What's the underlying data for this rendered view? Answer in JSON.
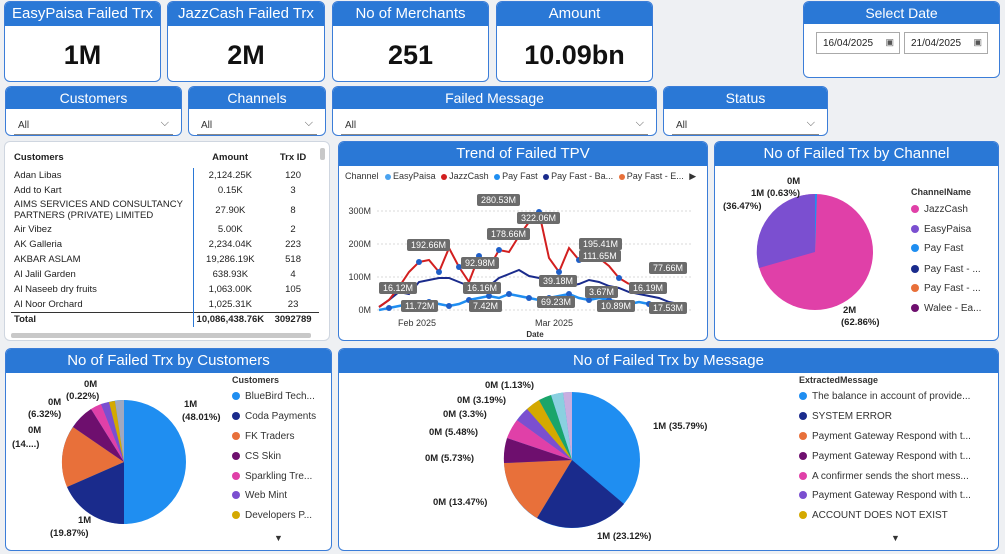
{
  "kpis": [
    {
      "title": "EasyPaisa Failed Trx",
      "value": "1M"
    },
    {
      "title": "JazzCash Failed Trx",
      "value": "2M"
    },
    {
      "title": "No of Merchants",
      "value": "251"
    },
    {
      "title": "Amount",
      "value": "10.09bn"
    }
  ],
  "date": {
    "title": "Select Date",
    "from": "16/04/2025",
    "to": "21/04/2025"
  },
  "slicers": [
    {
      "title": "Customers",
      "value": "All"
    },
    {
      "title": "Channels",
      "value": "All"
    },
    {
      "title": "Failed Message",
      "value": "All"
    },
    {
      "title": "Status",
      "value": "All"
    }
  ],
  "table": {
    "headers": [
      "Customers",
      "Amount",
      "Trx ID"
    ],
    "rows": [
      [
        "Adan Libas",
        "2,124.25K",
        "120"
      ],
      [
        "Add to Kart",
        "0.15K",
        "3"
      ],
      [
        "AIMS SERVICES AND CONSULTANCY PARTNERS (PRIVATE) LIMITED",
        "27.90K",
        "8"
      ],
      [
        "Air Vibez",
        "5.00K",
        "2"
      ],
      [
        "AK Galleria",
        "2,234.04K",
        "223"
      ],
      [
        "AKBAR ASLAM",
        "19,286.19K",
        "518"
      ],
      [
        "Al Jalil Garden",
        "638.93K",
        "4"
      ],
      [
        "Al Naseeb dry fruits",
        "1,063.00K",
        "105"
      ],
      [
        "Al Noor Orchard",
        "1,025.31K",
        "23"
      ]
    ],
    "total": [
      "Total",
      "10,086,438.76K",
      "3092789"
    ]
  },
  "trend": {
    "title": "Trend of Failed TPV",
    "legend_title": "Channel",
    "legend": [
      "EasyPaisa",
      "JazzCash",
      "Pay Fast",
      "Pay Fast - Ba...",
      "Pay Fast - E...",
      "▶"
    ],
    "y_ticks": [
      "300M",
      "200M",
      "100M",
      "0M"
    ],
    "x_ticks": [
      "Feb 2025",
      "Mar 2025"
    ],
    "x_label": "Date",
    "chips": [
      "280.53M",
      "322.06M",
      "192.66M",
      "178.66M",
      "92.98M",
      "195.41M",
      "111.65M",
      "77.66M",
      "16.12M",
      "16.16M",
      "39.18M",
      "3.67M",
      "16.19M",
      "11.72M",
      "7.42M",
      "69.23M",
      "10.89M",
      "17.53M"
    ]
  },
  "channel_pie": {
    "title": "No of Failed Trx by Channel",
    "legend_title": "ChannelName",
    "legend": [
      "JazzCash",
      "EasyPaisa",
      "Pay Fast",
      "Pay Fast - ...",
      "Pay Fast - ...",
      "Walee - Ea..."
    ],
    "labels": {
      "zero": "0M",
      "ep": "1M (0.63%)",
      "ep2": "(36.47%)",
      "jc": "2M",
      "jc2": "(62.86%)"
    }
  },
  "customers_pie": {
    "title": "No of Failed Trx by Customers",
    "legend_title": "Customers",
    "legend": [
      "BlueBird Tech...",
      "Coda Payments",
      "FK Traders",
      "CS Skin",
      "Sparkling Tre...",
      "Web Mint",
      "Developers P..."
    ],
    "labels": {
      "a": "1M",
      "a2": "(48.01%)",
      "b": "1M",
      "b2": "(19.87%)",
      "c": "0M",
      "c2": "(14....)",
      "d": "0M",
      "d2": "(6.32%)",
      "e": "0M",
      "e2": "(0.22%)"
    }
  },
  "message_pie": {
    "title": "No of Failed Trx by Message",
    "legend_title": "ExtractedMessage",
    "legend": [
      "The balance in account of provide...",
      "SYSTEM ERROR",
      "Payment Gateway Respond with t...",
      "Payment Gateway Respond with t...",
      "A confirmer sends the short mess...",
      "Payment Gateway Respond with t...",
      "ACCOUNT DOES NOT EXIST"
    ],
    "labels": [
      "1M (35.79%)",
      "1M (23.12%)",
      "0M (13.47%)",
      "0M (5.73%)",
      "0M (5.48%)",
      "0M (3.3%)",
      "0M (3.19%)",
      "0M (1.13%)"
    ]
  },
  "colors": {
    "header": "#2a78d6",
    "blue": "#1f8ef1",
    "navy": "#1a2b8c",
    "orange": "#e8703a",
    "purple": "#6e0f6e",
    "pink": "#e040a8",
    "violet": "#7b4fd0",
    "yellow": "#d4a900",
    "red": "#d21f1f"
  }
}
